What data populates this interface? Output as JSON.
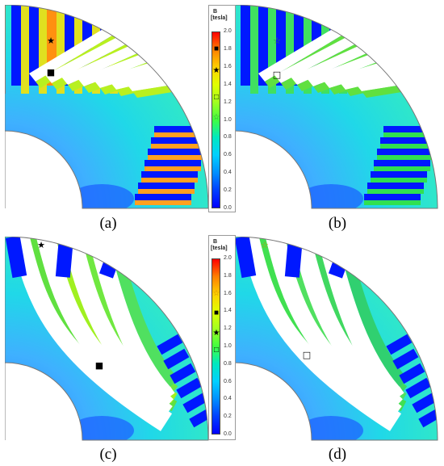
{
  "panels": [
    {
      "id": "a",
      "caption": "(a)",
      "design": "straight",
      "fill": "hot"
    },
    {
      "id": "b",
      "caption": "(b)",
      "design": "straight",
      "fill": "cool"
    },
    {
      "id": "c",
      "caption": "(c)",
      "design": "curved",
      "fill": "hot"
    },
    {
      "id": "d",
      "caption": "(d)",
      "design": "curved",
      "fill": "cool"
    }
  ],
  "legends": [
    {
      "id": "top",
      "title_line1": "B",
      "title_line2": "[tesla]",
      "ticks": [
        "2.0",
        "1.8",
        "1.6",
        "1.4",
        "1.2",
        "1.0",
        "0.8",
        "0.6",
        "0.4",
        "0.2",
        "0.0"
      ],
      "markers": [
        {
          "symbol": "■",
          "value": 1.8,
          "color": "#000000"
        },
        {
          "symbol": "★",
          "value": 1.55,
          "color": "#000000"
        },
        {
          "symbol": "□",
          "value": 1.25,
          "color": "#000000"
        },
        {
          "symbol": "☆",
          "value": 1.02,
          "color": "#3a8a3a"
        }
      ]
    },
    {
      "id": "bottom",
      "title_line1": "B",
      "title_line2": "[tesla]",
      "ticks": [
        "2.0",
        "1.8",
        "1.6",
        "1.4",
        "1.2",
        "1.0",
        "0.8",
        "0.6",
        "0.4",
        "0.2",
        "0.0"
      ],
      "markers": [
        {
          "symbol": "☆",
          "value": 1.6,
          "color": "#c69000"
        },
        {
          "symbol": "■",
          "value": 1.38,
          "color": "#000000"
        },
        {
          "symbol": "★",
          "value": 1.15,
          "color": "#000000"
        },
        {
          "symbol": "□",
          "value": 0.95,
          "color": "#000000"
        }
      ]
    }
  ],
  "colormap": [
    "#0000ff",
    "#0040ff",
    "#0090ff",
    "#00d0ff",
    "#00e8c0",
    "#40ff40",
    "#a0ff20",
    "#e0ff00",
    "#ffd000",
    "#ff8000",
    "#ff0000"
  ]
}
